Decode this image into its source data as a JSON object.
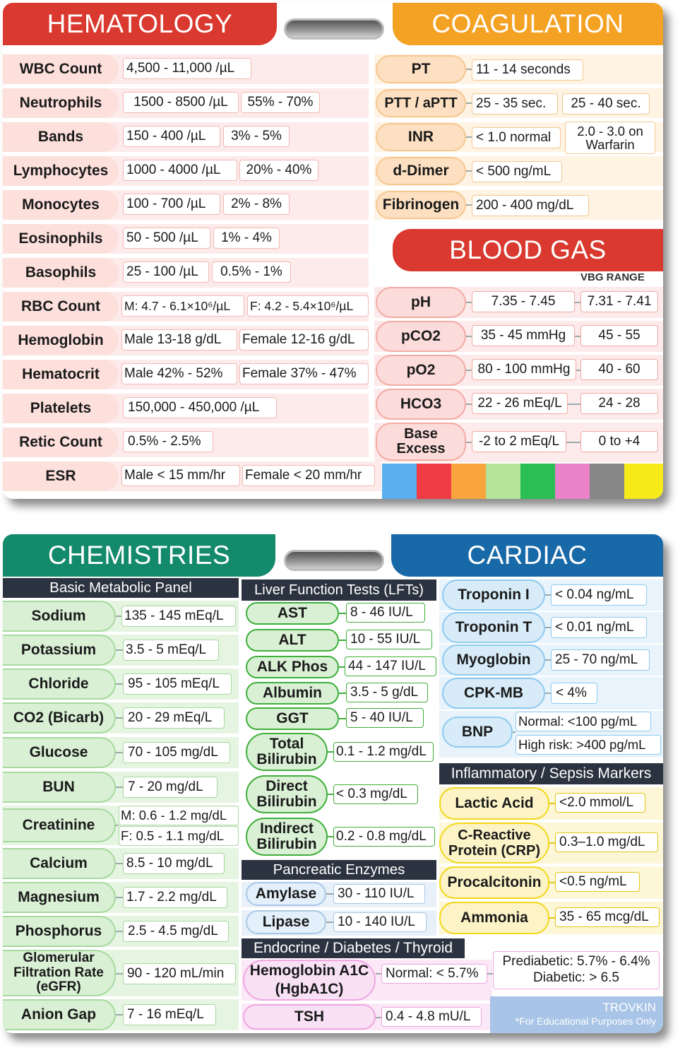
{
  "hematology": {
    "title": "HEMATOLOGY",
    "rows": [
      {
        "label": "WBC Count",
        "values": [
          "4,500 - 11,000 /µL"
        ]
      },
      {
        "label": "Neutrophils",
        "values": [
          "1500 - 8500 /µL",
          "55% - 70%"
        ]
      },
      {
        "label": "Bands",
        "values": [
          "150 - 400 /µL",
          "3% - 5%"
        ]
      },
      {
        "label": "Lymphocytes",
        "values": [
          "1000 - 4000 /µL",
          "20% - 40%"
        ]
      },
      {
        "label": "Monocytes",
        "values": [
          "100 - 700 /µL",
          "2% - 8%"
        ]
      },
      {
        "label": "Eosinophils",
        "values": [
          "50 - 500 /µL",
          "1% - 4%"
        ]
      },
      {
        "label": "Basophils",
        "values": [
          "25 - 100 /µL",
          "0.5% - 1%"
        ]
      },
      {
        "label": "RBC Count",
        "values": [
          "M: 4.7 - 6.1×10⁶/µL",
          "F: 4.2 - 5.4×10⁶/µL"
        ]
      },
      {
        "label": "Hemoglobin",
        "values": [
          "Male 13-18 g/dL",
          "Female 12-16 g/dL"
        ]
      },
      {
        "label": "Hematocrit",
        "values": [
          "Male 42% - 52%",
          "Female 37% - 47%"
        ]
      },
      {
        "label": "Platelets",
        "values": [
          "150,000 - 450,000 /µL"
        ]
      },
      {
        "label": "Retic Count",
        "values": [
          "0.5% - 2.5%"
        ]
      },
      {
        "label": "ESR",
        "values": [
          "Male < 15 mm/hr",
          "Female < 20 mm/hr"
        ]
      }
    ]
  },
  "coagulation": {
    "title": "COAGULATION",
    "rows": [
      {
        "label": "PT",
        "values": [
          "11 - 14 seconds"
        ]
      },
      {
        "label": "PTT / aPTT",
        "values": [
          "25 - 35 sec.",
          "25 - 40 sec."
        ]
      },
      {
        "label": "INR",
        "values": [
          "< 1.0 normal",
          "2.0 - 3.0 on Warfarin"
        ]
      },
      {
        "label": "d-Dimer",
        "values": [
          "< 500 ng/mL"
        ]
      },
      {
        "label": "Fibrinogen",
        "values": [
          "200 - 400 mg/dL"
        ]
      }
    ]
  },
  "blood_gas": {
    "title": "BLOOD GAS",
    "vbg_label": "VBG RANGE",
    "rows": [
      {
        "label": "pH",
        "values": [
          "7.35 - 7.45",
          "7.31 - 7.41"
        ]
      },
      {
        "label": "pCO2",
        "values": [
          "35 - 45 mmHg",
          "45 - 55"
        ]
      },
      {
        "label": "pO2",
        "values": [
          "80 - 100 mmHg",
          "40 - 60"
        ]
      },
      {
        "label": "HCO3",
        "values": [
          "22 - 26 mEq/L",
          "24 - 28"
        ]
      },
      {
        "label": "Base Excess",
        "values": [
          "-2 to 2 mEq/L",
          "0 to +4"
        ]
      }
    ]
  },
  "swatches": [
    "#5ab0ee",
    "#ef3c45",
    "#f9a53d",
    "#b5e59a",
    "#2bbe55",
    "#ea82c8",
    "#878787",
    "#f7ea1b"
  ],
  "chemistries": {
    "title": "CHEMISTRIES",
    "bmp_header": "Basic Metabolic Panel",
    "rows": [
      {
        "label": "Sodium",
        "values": [
          "135 - 145 mEq/L"
        ]
      },
      {
        "label": "Potassium",
        "values": [
          "3.5 - 5 mEq/L"
        ]
      },
      {
        "label": "Chloride",
        "values": [
          "95 - 105 mEq/L"
        ]
      },
      {
        "label": "CO2 (Bicarb)",
        "values": [
          "20 - 29 mEq/L"
        ]
      },
      {
        "label": "Glucose",
        "values": [
          "70 - 105 mg/dL"
        ]
      },
      {
        "label": "BUN",
        "values": [
          "7 - 20 mg/dL"
        ]
      },
      {
        "label": "Creatinine",
        "values": [
          "M: 0.6 - 1.2 mg/dL",
          "F: 0.5 - 1.1 mg/dL"
        ]
      },
      {
        "label": "Calcium",
        "values": [
          "8.5 - 10 mg/dL"
        ]
      },
      {
        "label": "Magnesium",
        "values": [
          "1.7 - 2.2 mg/dL"
        ]
      },
      {
        "label": "Phosphorus",
        "values": [
          "2.5 - 4.5 mg/dL"
        ]
      },
      {
        "label": "Glomerular Filtration Rate (eGFR)",
        "values": [
          "90 - 120 mL/min"
        ]
      },
      {
        "label": "Anion Gap",
        "values": [
          "7 - 16 mEq/L"
        ]
      }
    ]
  },
  "lft": {
    "header": "Liver Function Tests (LFTs)",
    "rows": [
      {
        "label": "AST",
        "values": [
          "8 - 46 IU/L"
        ]
      },
      {
        "label": "ALT",
        "values": [
          "10 - 55 IU/L"
        ]
      },
      {
        "label": "ALK Phos",
        "values": [
          "44 - 147 IU/L"
        ]
      },
      {
        "label": "Albumin",
        "values": [
          "3.5 - 5 g/dL"
        ]
      },
      {
        "label": "GGT",
        "values": [
          "5 - 40 IU/L"
        ]
      },
      {
        "label": "Total Bilirubin",
        "values": [
          "0.1 - 1.2 mg/dL"
        ]
      },
      {
        "label": "Direct Bilirubin",
        "values": [
          "< 0.3 mg/dL"
        ]
      },
      {
        "label": "Indirect Bilirubin",
        "values": [
          "0.2 - 0.8 mg/dL"
        ]
      }
    ]
  },
  "pancreatic": {
    "header": "Pancreatic Enzymes",
    "rows": [
      {
        "label": "Amylase",
        "values": [
          "30 - 110 IU/L"
        ]
      },
      {
        "label": "Lipase",
        "values": [
          "10 - 140 IU/L"
        ]
      }
    ]
  },
  "endocrine": {
    "header": "Endocrine / Diabetes / Thyroid",
    "rows": [
      {
        "label": "Hemoglobin A1C (HgbA1C)",
        "values": [
          "Normal: < 5.7%",
          "Prediabetic: 5.7% - 6.4%",
          "Diabetic: > 6.5"
        ]
      },
      {
        "label": "TSH",
        "values": [
          "0.4 - 4.8 mU/L"
        ]
      }
    ]
  },
  "cardiac": {
    "title": "CARDIAC",
    "rows": [
      {
        "label": "Troponin I",
        "values": [
          "< 0.04 ng/mL"
        ]
      },
      {
        "label": "Troponin T",
        "values": [
          "< 0.01 ng/mL"
        ]
      },
      {
        "label": "Myoglobin",
        "values": [
          "25 - 70 ng/mL"
        ]
      },
      {
        "label": "CPK-MB",
        "values": [
          "< 4%"
        ]
      },
      {
        "label": "BNP",
        "values": [
          "Normal: <100 pg/mL",
          "High risk: >400 pg/mL"
        ]
      }
    ]
  },
  "inflammatory": {
    "header": "Inflammatory / Sepsis Markers",
    "rows": [
      {
        "label": "Lactic Acid",
        "values": [
          "<2.0 mmol/L"
        ]
      },
      {
        "label": "C-Reactive Protein (CRP)",
        "values": [
          "0.3–1.0 mg/dL"
        ]
      },
      {
        "label": "Procalcitonin",
        "values": [
          "<0.5 ng/mL"
        ]
      },
      {
        "label": "Ammonia",
        "values": [
          "35 - 65 mcg/dL"
        ]
      }
    ]
  },
  "brand": {
    "name": "TROVKIN",
    "disclaimer": "*For Educational Purposes Only"
  }
}
